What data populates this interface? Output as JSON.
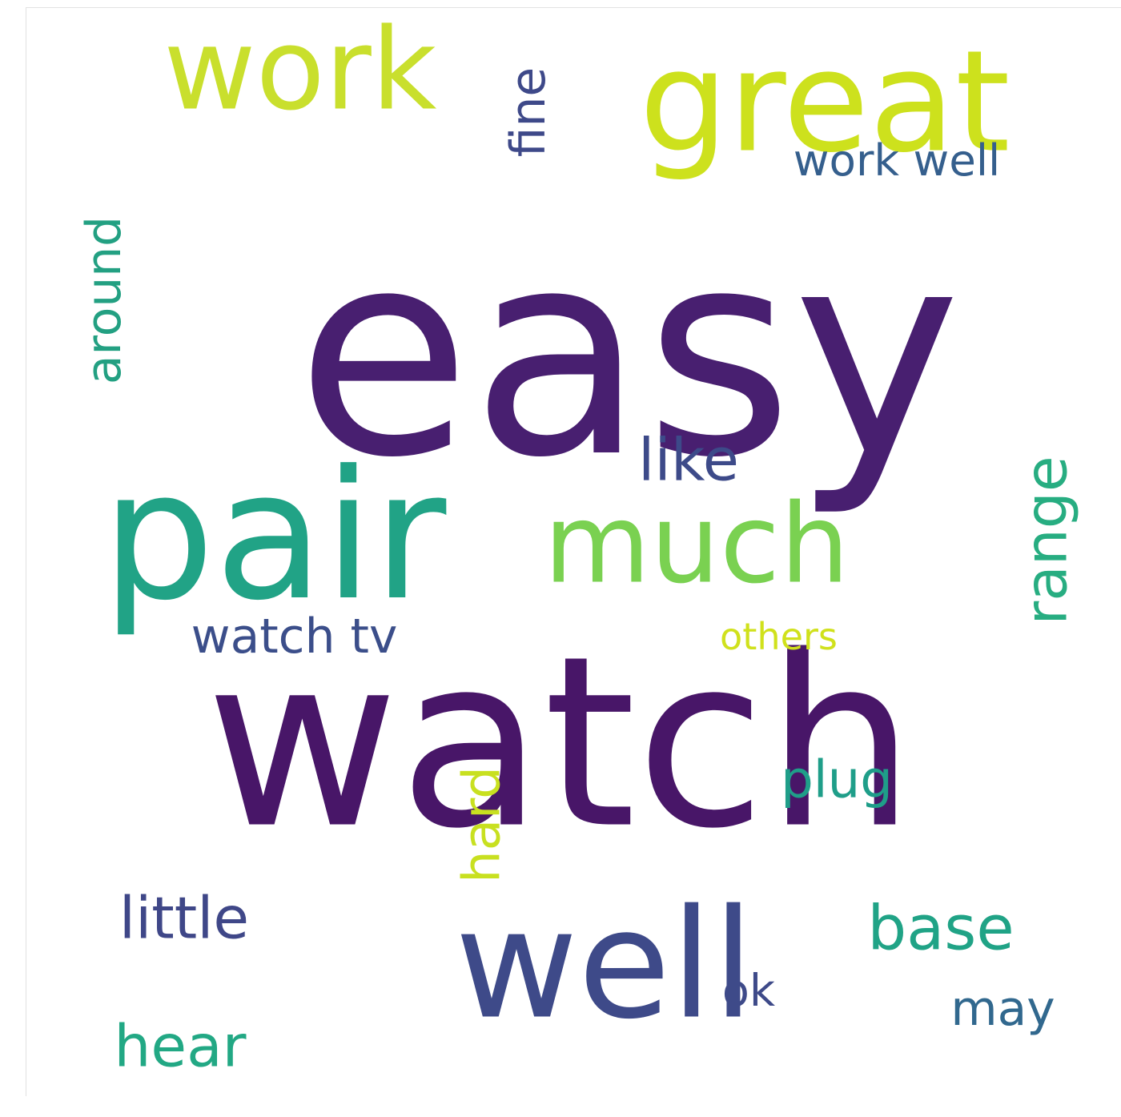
{
  "background": "#ffffff",
  "words": [
    {
      "id": "easy",
      "text": "easy",
      "color": "#481f70",
      "rotated": false
    },
    {
      "id": "watch",
      "text": "watch",
      "color": "#481668",
      "rotated": false
    },
    {
      "id": "pair",
      "text": "pair",
      "color": "#21a386",
      "rotated": false
    },
    {
      "id": "well",
      "text": "well",
      "color": "#3e4a89",
      "rotated": false
    },
    {
      "id": "work",
      "text": "work",
      "color": "#c9df2d",
      "rotated": false
    },
    {
      "id": "great",
      "text": "great",
      "color": "#cde11d",
      "rotated": false
    },
    {
      "id": "much",
      "text": "much",
      "color": "#7ad151",
      "rotated": false
    },
    {
      "id": "watch-tv",
      "text": "watch tv",
      "color": "#3b4e8a",
      "rotated": false
    },
    {
      "id": "around",
      "text": "around",
      "color": "#23a082",
      "rotated": true
    },
    {
      "id": "work-well",
      "text": "work well",
      "color": "#355f8d",
      "rotated": false
    },
    {
      "id": "fine",
      "text": "fine",
      "color": "#3e4989",
      "rotated": true
    },
    {
      "id": "like",
      "text": "like",
      "color": "#3d4a89",
      "rotated": false
    },
    {
      "id": "range",
      "text": "range",
      "color": "#27ad81",
      "rotated": true
    },
    {
      "id": "others",
      "text": "others",
      "color": "#d0e11c",
      "rotated": false
    },
    {
      "id": "hard",
      "text": "hard",
      "color": "#c8e020",
      "rotated": true
    },
    {
      "id": "plug",
      "text": "plug",
      "color": "#1f9e89",
      "rotated": false
    },
    {
      "id": "little",
      "text": "little",
      "color": "#3f4788",
      "rotated": false
    },
    {
      "id": "base",
      "text": "base",
      "color": "#20a386",
      "rotated": false
    },
    {
      "id": "ok",
      "text": "ok",
      "color": "#3e4a89",
      "rotated": false
    },
    {
      "id": "may",
      "text": "may",
      "color": "#31688e",
      "rotated": false
    },
    {
      "id": "hear",
      "text": "hear",
      "color": "#22a884",
      "rotated": false
    }
  ]
}
